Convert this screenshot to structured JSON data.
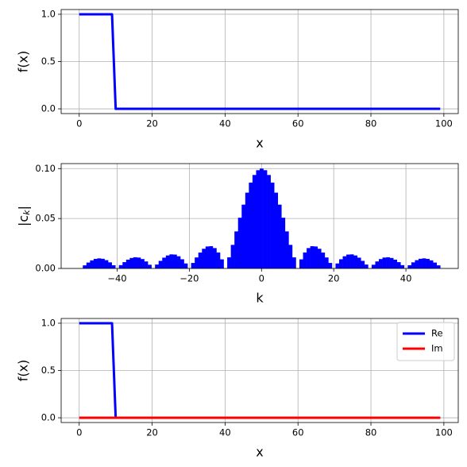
{
  "chart_data": [
    {
      "type": "line",
      "xlabel": "x",
      "ylabel": "f(x)",
      "x": [
        0,
        1,
        2,
        3,
        4,
        5,
        6,
        7,
        8,
        9,
        10,
        11,
        12,
        13,
        14,
        15,
        16,
        17,
        18,
        19,
        20,
        21,
        22,
        23,
        24,
        25,
        26,
        27,
        28,
        29,
        30,
        31,
        32,
        33,
        34,
        35,
        36,
        37,
        38,
        39,
        40,
        41,
        42,
        43,
        44,
        45,
        46,
        47,
        48,
        49,
        50,
        51,
        52,
        53,
        54,
        55,
        56,
        57,
        58,
        59,
        60,
        61,
        62,
        63,
        64,
        65,
        66,
        67,
        68,
        69,
        70,
        71,
        72,
        73,
        74,
        75,
        76,
        77,
        78,
        79,
        80,
        81,
        82,
        83,
        84,
        85,
        86,
        87,
        88,
        89,
        90,
        91,
        92,
        93,
        94,
        95,
        96,
        97,
        98,
        99
      ],
      "series": [
        {
          "color": "#0000ff",
          "values": [
            1,
            1,
            1,
            1,
            1,
            1,
            1,
            1,
            1,
            1,
            0,
            0,
            0,
            0,
            0,
            0,
            0,
            0,
            0,
            0,
            0,
            0,
            0,
            0,
            0,
            0,
            0,
            0,
            0,
            0,
            0,
            0,
            0,
            0,
            0,
            0,
            0,
            0,
            0,
            0,
            0,
            0,
            0,
            0,
            0,
            0,
            0,
            0,
            0,
            0,
            0,
            0,
            0,
            0,
            0,
            0,
            0,
            0,
            0,
            0,
            0,
            0,
            0,
            0,
            0,
            0,
            0,
            0,
            0,
            0,
            0,
            0,
            0,
            0,
            0,
            0,
            0,
            0,
            0,
            0,
            0,
            0,
            0,
            0,
            0,
            0,
            0,
            0,
            0,
            0,
            0,
            0,
            0,
            0,
            0,
            0,
            0,
            0,
            0,
            0
          ]
        }
      ],
      "xlim": [
        -4.95,
        103.95
      ],
      "ylim": [
        -0.05,
        1.05
      ],
      "xticks": [
        0,
        20,
        40,
        60,
        80,
        100
      ],
      "yticks": [
        {
          "value": 0,
          "label": "0.0"
        },
        {
          "value": 0.5,
          "label": "0.5"
        },
        {
          "value": 1,
          "label": "1.0"
        }
      ],
      "grid": true
    },
    {
      "type": "bar",
      "xlabel": "k",
      "ylabel": "|c_k|",
      "x": [
        -50,
        -49,
        -48,
        -47,
        -46,
        -45,
        -44,
        -43,
        -42,
        -41,
        -40,
        -39,
        -38,
        -37,
        -36,
        -35,
        -34,
        -33,
        -32,
        -31,
        -30,
        -29,
        -28,
        -27,
        -26,
        -25,
        -24,
        -23,
        -22,
        -21,
        -20,
        -19,
        -18,
        -17,
        -16,
        -15,
        -14,
        -13,
        -12,
        -11,
        -10,
        -9,
        -8,
        -7,
        -6,
        -5,
        -4,
        -3,
        -2,
        -1,
        0,
        1,
        2,
        3,
        4,
        5,
        6,
        7,
        8,
        9,
        10,
        11,
        12,
        13,
        14,
        15,
        16,
        17,
        18,
        19,
        20,
        21,
        22,
        23,
        24,
        25,
        26,
        27,
        28,
        29,
        30,
        31,
        32,
        33,
        34,
        35,
        36,
        37,
        38,
        39,
        40,
        41,
        42,
        43,
        44,
        45,
        46,
        47,
        48,
        49
      ],
      "values": [
        0,
        0.0031,
        0.0059,
        0.0081,
        0.0096,
        0.0101,
        0.0097,
        0.0083,
        0.0061,
        0.0032,
        0,
        0.0033,
        0.0063,
        0.0088,
        0.0105,
        0.0112,
        0.0109,
        0.0094,
        0.007,
        0.0037,
        0,
        0.0039,
        0.0076,
        0.0108,
        0.013,
        0.0141,
        0.0139,
        0.0122,
        0.0092,
        0.005,
        0,
        0.0055,
        0.011,
        0.0159,
        0.0197,
        0.022,
        0.0223,
        0.0204,
        0.016,
        0.0091,
        0,
        0.0111,
        0.0236,
        0.0371,
        0.0508,
        0.0639,
        0.0759,
        0.086,
        0.0936,
        0.0984,
        0.1,
        0.0984,
        0.0936,
        0.086,
        0.0759,
        0.0639,
        0.0508,
        0.0371,
        0.0236,
        0.0111,
        0,
        0.0091,
        0.016,
        0.0204,
        0.0223,
        0.022,
        0.0197,
        0.0159,
        0.011,
        0.0055,
        0,
        0.005,
        0.0092,
        0.0122,
        0.0139,
        0.0141,
        0.013,
        0.0108,
        0.0076,
        0.0039,
        0,
        0.0037,
        0.007,
        0.0094,
        0.0109,
        0.0112,
        0.0105,
        0.0088,
        0.0063,
        0.0033,
        0,
        0.0032,
        0.0061,
        0.0083,
        0.0097,
        0.0101,
        0.0096,
        0.0081,
        0.0059,
        0.0031
      ],
      "color": "#0000ff",
      "xlim": [
        -55.5,
        54.5
      ],
      "ylim": [
        0,
        0.105
      ],
      "xticks": [
        {
          "value": -40,
          "label": "−40"
        },
        {
          "value": -20,
          "label": "−20"
        },
        0,
        20,
        40
      ],
      "yticks": [
        {
          "value": 0,
          "label": "0.00"
        },
        {
          "value": 0.05,
          "label": "0.05"
        },
        {
          "value": 0.1,
          "label": "0.10"
        }
      ],
      "grid": true
    },
    {
      "type": "line",
      "xlabel": "x",
      "ylabel": "f(x)",
      "x": [
        0,
        1,
        2,
        3,
        4,
        5,
        6,
        7,
        8,
        9,
        10,
        11,
        12,
        13,
        14,
        15,
        16,
        17,
        18,
        19,
        20,
        21,
        22,
        23,
        24,
        25,
        26,
        27,
        28,
        29,
        30,
        31,
        32,
        33,
        34,
        35,
        36,
        37,
        38,
        39,
        40,
        41,
        42,
        43,
        44,
        45,
        46,
        47,
        48,
        49,
        50,
        51,
        52,
        53,
        54,
        55,
        56,
        57,
        58,
        59,
        60,
        61,
        62,
        63,
        64,
        65,
        66,
        67,
        68,
        69,
        70,
        71,
        72,
        73,
        74,
        75,
        76,
        77,
        78,
        79,
        80,
        81,
        82,
        83,
        84,
        85,
        86,
        87,
        88,
        89,
        90,
        91,
        92,
        93,
        94,
        95,
        96,
        97,
        98,
        99
      ],
      "series": [
        {
          "name": "Re",
          "color": "#0000ff",
          "values": [
            1,
            1,
            1,
            1,
            1,
            1,
            1,
            1,
            1,
            1,
            0,
            0,
            0,
            0,
            0,
            0,
            0,
            0,
            0,
            0,
            0,
            0,
            0,
            0,
            0,
            0,
            0,
            0,
            0,
            0,
            0,
            0,
            0,
            0,
            0,
            0,
            0,
            0,
            0,
            0,
            0,
            0,
            0,
            0,
            0,
            0,
            0,
            0,
            0,
            0,
            0,
            0,
            0,
            0,
            0,
            0,
            0,
            0,
            0,
            0,
            0,
            0,
            0,
            0,
            0,
            0,
            0,
            0,
            0,
            0,
            0,
            0,
            0,
            0,
            0,
            0,
            0,
            0,
            0,
            0,
            0,
            0,
            0,
            0,
            0,
            0,
            0,
            0,
            0,
            0,
            0,
            0,
            0,
            0,
            0,
            0,
            0,
            0,
            0,
            0
          ]
        },
        {
          "name": "Im",
          "color": "#ff0000",
          "values": [
            0,
            0,
            0,
            0,
            0,
            0,
            0,
            0,
            0,
            0,
            0,
            0,
            0,
            0,
            0,
            0,
            0,
            0,
            0,
            0,
            0,
            0,
            0,
            0,
            0,
            0,
            0,
            0,
            0,
            0,
            0,
            0,
            0,
            0,
            0,
            0,
            0,
            0,
            0,
            0,
            0,
            0,
            0,
            0,
            0,
            0,
            0,
            0,
            0,
            0,
            0,
            0,
            0,
            0,
            0,
            0,
            0,
            0,
            0,
            0,
            0,
            0,
            0,
            0,
            0,
            0,
            0,
            0,
            0,
            0,
            0,
            0,
            0,
            0,
            0,
            0,
            0,
            0,
            0,
            0,
            0,
            0,
            0,
            0,
            0,
            0,
            0,
            0,
            0,
            0,
            0,
            0,
            0,
            0,
            0,
            0,
            0,
            0,
            0,
            0
          ]
        }
      ],
      "xlim": [
        -4.95,
        103.95
      ],
      "ylim": [
        -0.05,
        1.05
      ],
      "xticks": [
        0,
        20,
        40,
        60,
        80,
        100
      ],
      "yticks": [
        {
          "value": 0,
          "label": "0.0"
        },
        {
          "value": 0.5,
          "label": "0.5"
        },
        {
          "value": 1,
          "label": "1.0"
        }
      ],
      "grid": true,
      "legend": "upper-right"
    }
  ]
}
